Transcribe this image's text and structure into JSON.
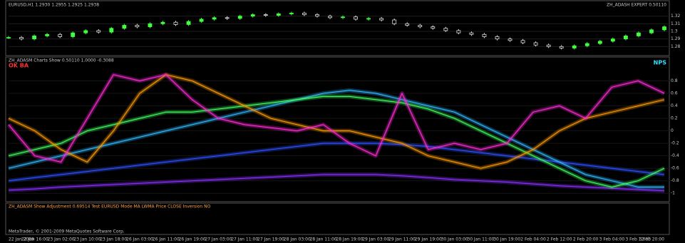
{
  "price_pane": {
    "label": "EURUSD,H1 1.2930 1.2955 1.2925 1.2938",
    "expert": "ZH_ADASH EXPERT 0.50110",
    "ylim": [
      1.27,
      1.33
    ],
    "yticks": [
      1.28,
      1.29,
      1.3,
      1.31,
      1.32
    ],
    "up_color": "#40ff40",
    "closes": [
      1.292,
      1.29,
      1.294,
      1.296,
      1.293,
      1.298,
      1.301,
      1.299,
      1.304,
      1.308,
      1.306,
      1.31,
      1.312,
      1.309,
      1.313,
      1.316,
      1.318,
      1.317,
      1.32,
      1.322,
      1.321,
      1.323,
      1.324,
      1.322,
      1.32,
      1.318,
      1.319,
      1.316,
      1.317,
      1.315,
      1.31,
      1.308,
      1.306,
      1.304,
      1.301,
      1.298,
      1.296,
      1.293,
      1.29,
      1.288,
      1.285,
      1.282,
      1.28,
      1.278,
      1.281,
      1.284,
      1.287,
      1.29,
      1.294,
      1.298,
      1.302,
      1.306
    ]
  },
  "indicator_pane": {
    "label": "ZH_ADASM Charts Show 0.50110 1.0000 -0.3088",
    "left_tag": "OK BA",
    "right_tag": "NPS",
    "ylim": [
      -1.1,
      1.0
    ],
    "yticks": [
      0.8,
      0.6,
      0.4,
      0.2,
      0,
      -0.2,
      -0.4,
      -0.6,
      -0.8,
      -1
    ],
    "series": [
      {
        "color": "#8a30ff",
        "values": [
          -0.95,
          -0.93,
          -0.9,
          -0.88,
          -0.86,
          -0.84,
          -0.82,
          -0.8,
          -0.78,
          -0.76,
          -0.74,
          -0.72,
          -0.7,
          -0.7,
          -0.7,
          -0.72,
          -0.75,
          -0.78,
          -0.8,
          -0.82,
          -0.85,
          -0.88,
          -0.9,
          -0.92,
          -0.94,
          -0.96
        ]
      },
      {
        "color": "#3050ff",
        "values": [
          -0.8,
          -0.75,
          -0.7,
          -0.65,
          -0.6,
          -0.55,
          -0.5,
          -0.45,
          -0.4,
          -0.35,
          -0.3,
          -0.25,
          -0.2,
          -0.2,
          -0.2,
          -0.22,
          -0.25,
          -0.3,
          -0.35,
          -0.4,
          -0.45,
          -0.5,
          -0.55,
          -0.6,
          -0.65,
          -0.7
        ]
      },
      {
        "color": "#30b8ff",
        "values": [
          -0.6,
          -0.5,
          -0.4,
          -0.3,
          -0.2,
          -0.1,
          0.0,
          0.1,
          0.2,
          0.3,
          0.4,
          0.5,
          0.6,
          0.65,
          0.6,
          0.5,
          0.4,
          0.3,
          0.1,
          -0.1,
          -0.3,
          -0.5,
          -0.7,
          -0.8,
          -0.9,
          -0.9
        ]
      },
      {
        "color": "#40ff60",
        "values": [
          -0.4,
          -0.3,
          -0.2,
          0.0,
          0.1,
          0.2,
          0.3,
          0.3,
          0.35,
          0.4,
          0.45,
          0.5,
          0.55,
          0.55,
          0.5,
          0.45,
          0.35,
          0.2,
          0.0,
          -0.2,
          -0.4,
          -0.6,
          -0.8,
          -0.9,
          -0.8,
          -0.6
        ]
      },
      {
        "color": "#ff9a00",
        "values": [
          0.2,
          0.0,
          -0.3,
          -0.5,
          0.0,
          0.6,
          0.9,
          0.8,
          0.6,
          0.4,
          0.2,
          0.1,
          0.0,
          0.0,
          -0.1,
          -0.2,
          -0.4,
          -0.5,
          -0.6,
          -0.5,
          -0.3,
          0.0,
          0.2,
          0.3,
          0.4,
          0.5
        ]
      },
      {
        "color": "#ff2bd6",
        "values": [
          0.1,
          -0.4,
          -0.5,
          0.2,
          0.9,
          0.8,
          0.9,
          0.5,
          0.2,
          0.1,
          0.05,
          0.0,
          0.1,
          -0.2,
          -0.4,
          0.6,
          -0.3,
          -0.2,
          -0.3,
          -0.2,
          0.3,
          0.4,
          0.2,
          0.7,
          0.8,
          0.6
        ]
      }
    ]
  },
  "settings_pane": {
    "label": "ZH_ADASM Show Adjustment 0.69514   Test EURUSD   Mode MA LWMA   Price CLOSE   Inversion NO",
    "footer": "MetaTrader, © 2001-2009 MetaQuotes Software Corp."
  },
  "time_axis": [
    "22 Jan 2009",
    "22 Jan 16:00",
    "23 Jan 02:00",
    "23 Jan 10:00",
    "23 Jan 18:00",
    "26 Jan 03:00",
    "26 Jan 11:00",
    "26 Jan 19:00",
    "27 Jan 03:00",
    "27 Jan 11:00",
    "27 Jan 19:00",
    "28 Jan 03:00",
    "28 Jan 11:00",
    "28 Jan 19:00",
    "29 Jan 03:00",
    "29 Jan 11:00",
    "29 Jan 19:00",
    "30 Jan 03:00",
    "30 Jan 11:00",
    "30 Jan 19:00",
    "2 Feb 04:00",
    "2 Feb 12:00",
    "2 Feb 20:00",
    "3 Feb 04:00",
    "3 Feb 12:00",
    "3 Feb 20:00"
  ]
}
